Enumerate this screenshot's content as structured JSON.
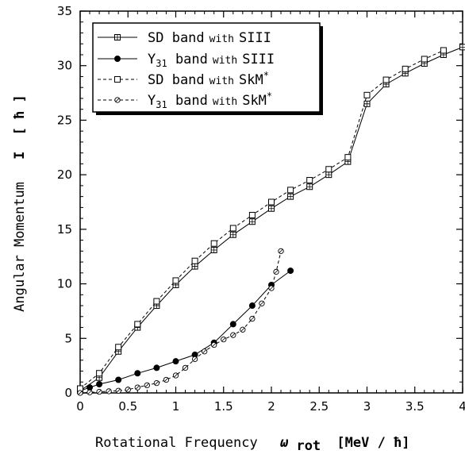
{
  "chart_data": {
    "type": "line",
    "title": "",
    "xlabel": {
      "prefix": "Rotational Frequency",
      "symbol": "ω",
      "subscript": "rot",
      "units": "[MeV / ħ]"
    },
    "ylabel": {
      "prefix": "Angular Momentum",
      "symbol": "I",
      "units": "[ ħ ]"
    },
    "xlim": [
      0,
      4
    ],
    "ylim": [
      0,
      35
    ],
    "x_ticks": [
      "0",
      "0.5",
      "1",
      "1.5",
      "2",
      "2.5",
      "3",
      "3.5",
      "4"
    ],
    "y_ticks": [
      "0",
      "5",
      "10",
      "15",
      "20",
      "25",
      "30",
      "35"
    ],
    "grid": false,
    "legend_position": "top-left",
    "series": [
      {
        "name": "SD band with SIII",
        "legend": {
          "main": "SD band",
          "small": "with",
          "suffix": "SIII"
        },
        "line": "solid",
        "marker": "square-hatched",
        "x": [
          0,
          0.2,
          0.4,
          0.6,
          0.8,
          1.0,
          1.2,
          1.4,
          1.6,
          1.8,
          2.0,
          2.2,
          2.4,
          2.6,
          2.8,
          3.0,
          3.2,
          3.4,
          3.6,
          3.8,
          4.0
        ],
        "y": [
          0.2,
          1.4,
          3.8,
          6.0,
          8.0,
          9.9,
          11.6,
          13.1,
          14.5,
          15.7,
          16.9,
          18.0,
          18.9,
          20.0,
          21.2,
          26.5,
          28.3,
          29.3,
          30.2,
          31.0,
          31.7
        ]
      },
      {
        "name": "Y31 band with SIII",
        "legend": {
          "main": "Y",
          "sub": "31",
          "main2": " band",
          "small": "with",
          "suffix": "SIII"
        },
        "line": "solid",
        "marker": "circle-filled",
        "x": [
          0,
          0.1,
          0.2,
          0.4,
          0.6,
          0.8,
          1.0,
          1.2,
          1.4,
          1.6,
          1.8,
          2.0,
          2.2
        ],
        "y": [
          0.2,
          0.5,
          0.8,
          1.2,
          1.8,
          2.3,
          2.9,
          3.5,
          4.6,
          6.3,
          8.0,
          9.9,
          11.2
        ]
      },
      {
        "name": "SD band with SkM*",
        "legend": {
          "main": "SD band",
          "small": "with",
          "suffix": "SkM",
          "sup": "*"
        },
        "line": "dashed",
        "marker": "square-open",
        "x": [
          0,
          0.2,
          0.4,
          0.6,
          0.8,
          1.0,
          1.2,
          1.4,
          1.6,
          1.8,
          2.0,
          2.2,
          2.4,
          2.6,
          2.8,
          3.0,
          3.2,
          3.4,
          3.6,
          3.8
        ],
        "y": [
          0.4,
          1.8,
          4.2,
          6.3,
          8.4,
          10.3,
          12.1,
          13.7,
          15.1,
          16.3,
          17.5,
          18.6,
          19.5,
          20.5,
          21.6,
          27.3,
          28.7,
          29.7,
          30.6,
          31.4
        ]
      },
      {
        "name": "Y31 band with SkM*",
        "legend": {
          "main": "Y",
          "sub": "31",
          "main2": " band",
          "small": "with",
          "suffix": "SkM",
          "sup": "*"
        },
        "line": "dashed",
        "marker": "circle-hatched",
        "x": [
          0,
          0.1,
          0.2,
          0.3,
          0.4,
          0.5,
          0.6,
          0.7,
          0.8,
          0.9,
          1.0,
          1.1,
          1.2,
          1.3,
          1.4,
          1.5,
          1.6,
          1.7,
          1.8,
          1.9,
          2.0,
          2.05,
          2.1
        ],
        "y": [
          0,
          0.05,
          0.1,
          0.15,
          0.2,
          0.3,
          0.5,
          0.7,
          0.9,
          1.2,
          1.6,
          2.3,
          3.1,
          3.8,
          4.4,
          4.9,
          5.3,
          5.8,
          6.8,
          8.2,
          9.6,
          11.1,
          13.0
        ]
      }
    ]
  }
}
